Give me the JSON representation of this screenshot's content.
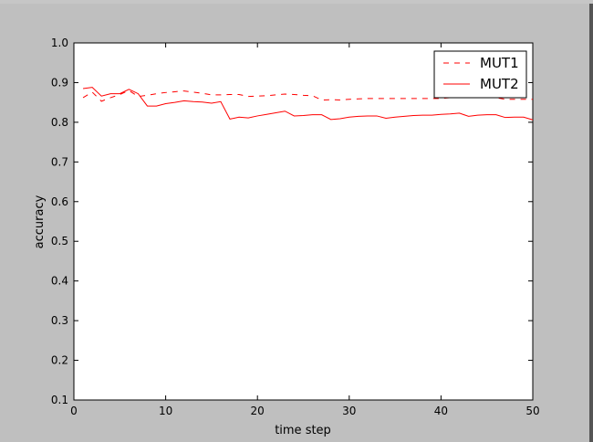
{
  "chart_data": {
    "type": "line",
    "title": "",
    "xlabel": "time step",
    "ylabel": "accuracy",
    "xlim": [
      0,
      50
    ],
    "ylim": [
      0.1,
      1.0
    ],
    "xticks": [
      "0",
      "10",
      "20",
      "30",
      "40",
      "50"
    ],
    "yticks": [
      "0.1",
      "0.2",
      "0.3",
      "0.4",
      "0.5",
      "0.6",
      "0.7",
      "0.8",
      "0.9",
      "1.0"
    ],
    "grid": false,
    "legend_position": "top-right",
    "series": [
      {
        "name": "MUT1",
        "style": "dashed",
        "color": "#ff0000",
        "x": [
          1,
          2,
          3,
          4,
          5,
          6,
          7,
          8,
          9,
          10,
          11,
          12,
          13,
          14,
          15,
          16,
          17,
          18,
          19,
          20,
          21,
          22,
          23,
          24,
          25,
          26,
          27,
          28,
          29,
          30,
          31,
          32,
          33,
          34,
          35,
          36,
          37,
          38,
          39,
          40,
          41,
          42,
          43,
          44,
          45,
          46,
          47,
          48,
          49,
          50
        ],
        "values": [
          0.862,
          0.876,
          0.853,
          0.862,
          0.87,
          0.88,
          0.865,
          0.868,
          0.872,
          0.875,
          0.877,
          0.879,
          0.876,
          0.873,
          0.869,
          0.869,
          0.87,
          0.87,
          0.865,
          0.866,
          0.867,
          0.869,
          0.871,
          0.87,
          0.868,
          0.867,
          0.856,
          0.857,
          0.856,
          0.858,
          0.859,
          0.86,
          0.86,
          0.86,
          0.86,
          0.86,
          0.86,
          0.86,
          0.86,
          0.86,
          0.862,
          0.863,
          0.864,
          0.865,
          0.864,
          0.862,
          0.858,
          0.858,
          0.858,
          0.858
        ]
      },
      {
        "name": "MUT2",
        "style": "solid",
        "color": "#ff0000",
        "x": [
          1,
          2,
          3,
          4,
          5,
          6,
          7,
          8,
          9,
          10,
          11,
          12,
          13,
          14,
          15,
          16,
          17,
          18,
          19,
          20,
          21,
          22,
          23,
          24,
          25,
          26,
          27,
          28,
          29,
          30,
          31,
          32,
          33,
          34,
          35,
          36,
          37,
          38,
          39,
          40,
          41,
          42,
          43,
          44,
          45,
          46,
          47,
          48,
          49,
          50
        ],
        "values": [
          0.885,
          0.888,
          0.866,
          0.872,
          0.872,
          0.883,
          0.872,
          0.841,
          0.841,
          0.847,
          0.85,
          0.854,
          0.852,
          0.851,
          0.848,
          0.852,
          0.808,
          0.813,
          0.811,
          0.816,
          0.82,
          0.824,
          0.828,
          0.816,
          0.817,
          0.819,
          0.819,
          0.807,
          0.809,
          0.813,
          0.815,
          0.816,
          0.816,
          0.81,
          0.813,
          0.815,
          0.817,
          0.818,
          0.818,
          0.82,
          0.821,
          0.823,
          0.815,
          0.818,
          0.819,
          0.819,
          0.812,
          0.813,
          0.813,
          0.806
        ]
      }
    ]
  }
}
